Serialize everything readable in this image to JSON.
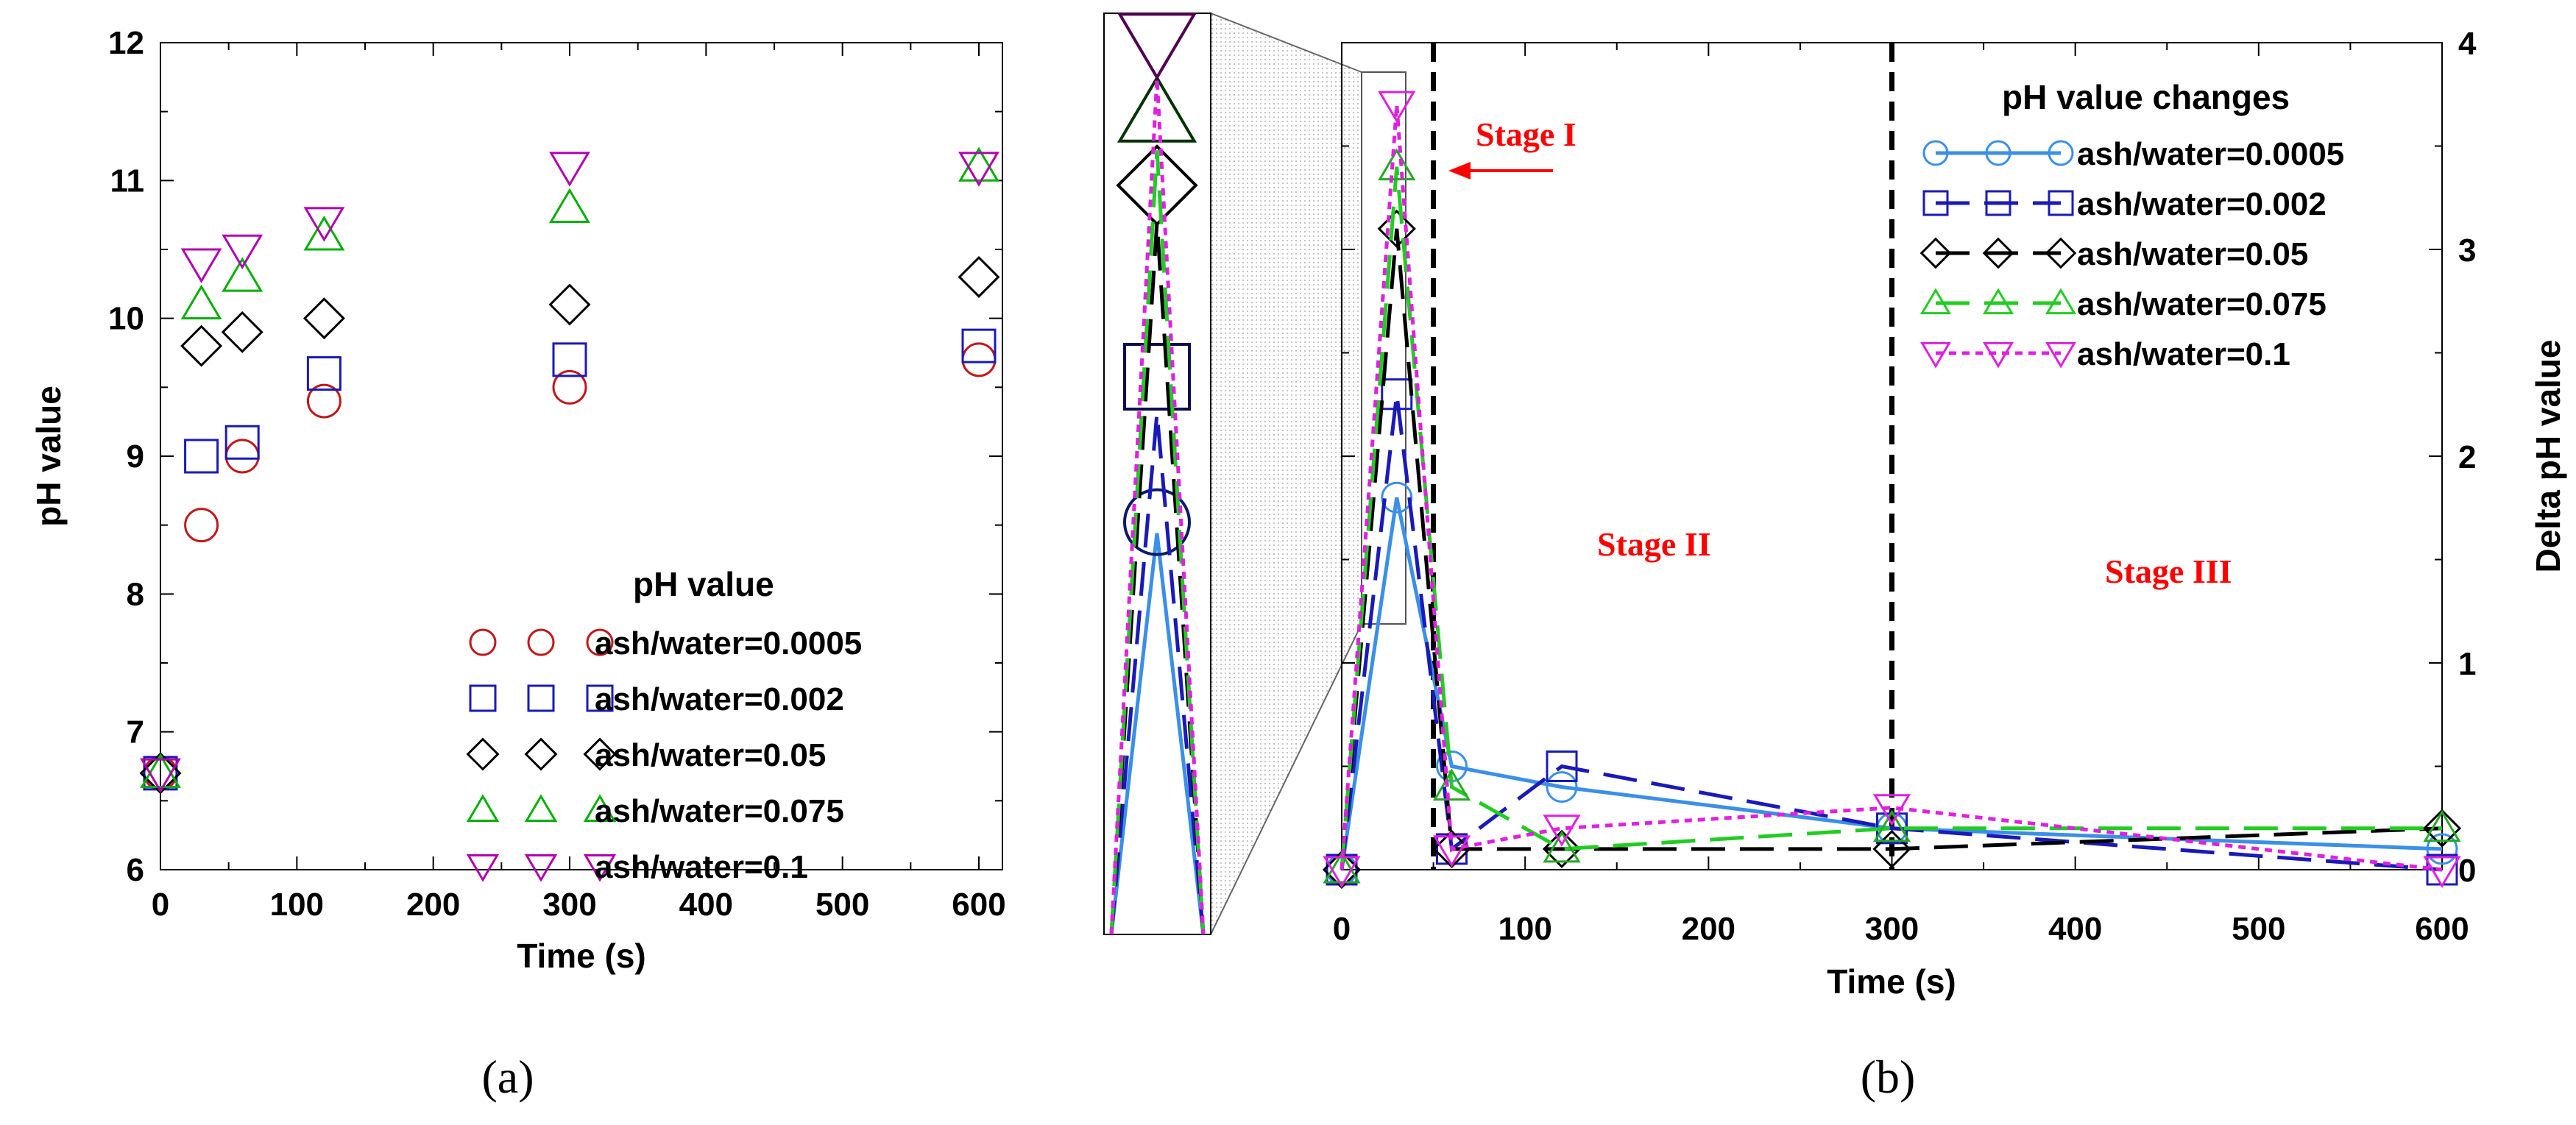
{
  "colors": {
    "s0005": "#c0181b",
    "s002": "#1a1ab8",
    "s05": "#000000",
    "s075": "#00b000",
    "s01": "#b000b0"
  },
  "chart_data": [
    {
      "panel": "(a)",
      "type": "scatter",
      "xlabel": "Time (s)",
      "ylabel": "pH value",
      "xlim": [
        0,
        600
      ],
      "ylim": [
        6,
        12
      ],
      "xticks": [
        0,
        100,
        200,
        300,
        400,
        500,
        600
      ],
      "yticks": [
        6,
        7,
        8,
        9,
        10,
        11,
        12
      ],
      "legend_title": "pH value",
      "x": [
        0,
        30,
        60,
        120,
        300,
        600
      ],
      "series": [
        {
          "name": "ash/water=0.0005",
          "marker": "circle",
          "color": "#c0181b",
          "values": [
            6.7,
            8.5,
            9.0,
            9.4,
            9.5,
            9.7
          ]
        },
        {
          "name": "ash/water=0.002",
          "marker": "square",
          "color": "#1a1ab8",
          "values": [
            6.7,
            9.0,
            9.1,
            9.6,
            9.7,
            9.8
          ]
        },
        {
          "name": "ash/water=0.05",
          "marker": "diamond",
          "color": "#000000",
          "values": [
            6.7,
            9.8,
            9.9,
            10.0,
            10.1,
            10.3
          ]
        },
        {
          "name": "ash/water=0.075",
          "marker": "triangle-up",
          "color": "#00b000",
          "values": [
            6.7,
            10.1,
            10.3,
            10.6,
            10.8,
            11.1
          ]
        },
        {
          "name": "ash/water=0.1",
          "marker": "triangle-down",
          "color": "#b000b0",
          "values": [
            6.7,
            10.4,
            10.5,
            10.7,
            11.1,
            11.1
          ]
        }
      ]
    },
    {
      "panel": "(b)",
      "type": "line",
      "xlabel": "Time (s)",
      "ylabel": "Delta pH value",
      "xlim": [
        0,
        600
      ],
      "ylim": [
        0,
        4
      ],
      "xticks": [
        0,
        100,
        200,
        300,
        400,
        500,
        600
      ],
      "yticks": [
        0,
        1,
        2,
        3,
        4
      ],
      "legend_title": "pH value changes",
      "stage_lines": [
        50,
        300
      ],
      "stages": [
        "Stage I",
        "Stage II",
        "Stage III"
      ],
      "x": [
        0,
        30,
        60,
        120,
        300,
        600
      ],
      "series": [
        {
          "name": "ash/water=0.0005",
          "marker": "circle",
          "color": "#3a8fe8",
          "dash": "solid",
          "values": [
            0,
            1.8,
            0.5,
            0.4,
            0.2,
            0.1
          ]
        },
        {
          "name": "ash/water=0.002",
          "marker": "square",
          "color": "#1a1ab8",
          "dash": "long",
          "values": [
            0,
            2.3,
            0.1,
            0.5,
            0.2,
            0.0
          ]
        },
        {
          "name": "ash/water=0.05",
          "marker": "diamond",
          "color": "#000000",
          "dash": "long",
          "values": [
            0,
            3.1,
            0.1,
            0.1,
            0.1,
            0.2
          ]
        },
        {
          "name": "ash/water=0.075",
          "marker": "triangle-up",
          "color": "#22cc22",
          "dash": "long",
          "values": [
            0,
            3.4,
            0.4,
            0.1,
            0.2,
            0.2
          ]
        },
        {
          "name": "ash/water=0.1",
          "marker": "triangle-down",
          "color": "#e020e0",
          "dash": "dot",
          "values": [
            0,
            3.7,
            0.1,
            0.2,
            0.3,
            0.0
          ]
        }
      ]
    }
  ]
}
